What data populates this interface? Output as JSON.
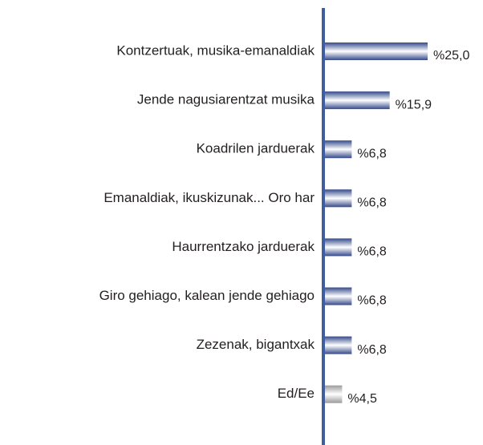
{
  "chart_data": {
    "type": "bar",
    "orientation": "horizontal",
    "categories": [
      "Kontzertuak, musika-emanaldiak",
      "Jende nagusiarentzat musika",
      "Koadrilen jarduerak",
      "Emanaldiak, ikuskizunak... Oro har",
      "Haurrentzako jarduerak",
      "Giro gehiago, kalean jende gehiago",
      "Zezenak, bigantxak",
      "Ed/Ee"
    ],
    "values": [
      25.0,
      15.9,
      6.8,
      6.8,
      6.8,
      6.8,
      6.8,
      4.5
    ],
    "value_labels": [
      "%25,0",
      "%15,9",
      "%6,8",
      "%6,8",
      "%6,8",
      "%6,8",
      "%6,8",
      "%4,5"
    ],
    "colors": [
      "#34498a",
      "#34498a",
      "#34498a",
      "#34498a",
      "#34498a",
      "#34498a",
      "#34498a",
      "#9a9a9a"
    ]
  }
}
